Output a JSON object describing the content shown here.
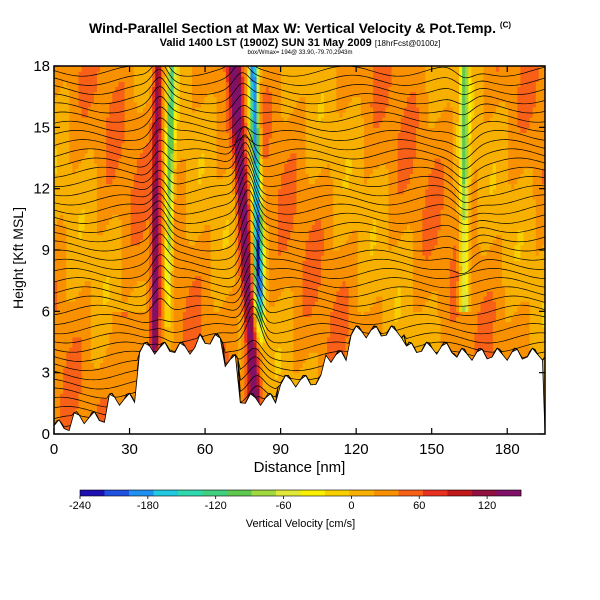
{
  "title_main": "Wind-Parallel Section at Max W: Vertical Velocity & Pot.Temp.",
  "title_suffix": "(C)",
  "subtitle_main": "Valid 1400 LST (1900Z) SUN 31 May 2009",
  "subtitle_suffix": "[18hrFcst@0100z]",
  "subtitle2": "box/Wmax= 194@ 33.90,-79.70,2943m",
  "chart_data": {
    "type": "heatmap",
    "title": "Wind-Parallel Section at Max W: Vertical Velocity & Pot.Temp.",
    "xlabel": "Distance [nm]",
    "ylabel": "Height [Kft MSL]",
    "xlim": [
      0,
      195
    ],
    "ylim": [
      0,
      18
    ],
    "xticks": [
      0,
      30,
      60,
      90,
      120,
      150,
      180
    ],
    "yticks": [
      0,
      3,
      6,
      9,
      12,
      15,
      18
    ],
    "colorbar": {
      "label": "Vertical Velocity [cm/s]",
      "range": [
        -240,
        150
      ],
      "ticks": [
        -240,
        -180,
        -120,
        -60,
        0,
        60,
        120
      ],
      "colors": [
        "#1e10b0",
        "#2050e0",
        "#2090f0",
        "#20c8e0",
        "#30d8b0",
        "#40d080",
        "#60c850",
        "#a0d840",
        "#e0e838",
        "#f8f000",
        "#f8d000",
        "#f8b000",
        "#f89000",
        "#f86018",
        "#e83020",
        "#c01818",
        "#901040",
        "#801068"
      ]
    },
    "features": [
      {
        "name": "updraft-main",
        "x_nm": 78,
        "peak_cm_s": 140
      },
      {
        "name": "downdraft-main",
        "x_nm": 82,
        "peak_cm_s": -230
      },
      {
        "name": "updraft-west",
        "x_nm": 40,
        "peak_cm_s": 110
      },
      {
        "name": "downdraft-west",
        "x_nm": 45,
        "peak_cm_s": -120
      },
      {
        "name": "downdraft-east",
        "x_nm": 163,
        "peak_cm_s": -110
      }
    ],
    "isentrope_count": 40
  }
}
